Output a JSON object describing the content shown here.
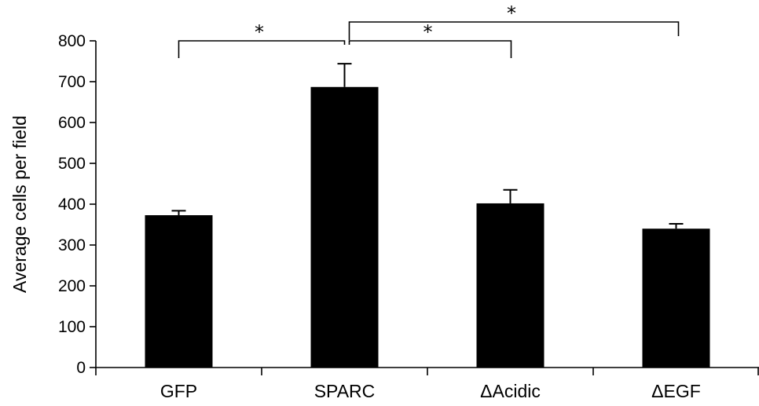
{
  "chart_data": {
    "type": "bar",
    "title": "",
    "xlabel": "",
    "ylabel": "Average cells per field",
    "categories": [
      "GFP",
      "SPARC",
      "ΔAcidic",
      "ΔEGF"
    ],
    "values": [
      373,
      687,
      402,
      340
    ],
    "error": [
      11,
      57,
      33,
      12
    ],
    "ylim": [
      0,
      800
    ],
    "yticks": [
      0,
      100,
      200,
      300,
      400,
      500,
      600,
      700,
      800
    ],
    "grid": false,
    "bar_color": "#000000",
    "significance": [
      {
        "from": 0,
        "to": 1,
        "label": "*"
      },
      {
        "from": 1,
        "to": 2,
        "label": "*"
      },
      {
        "from": 1,
        "to": 3,
        "label": "*"
      }
    ]
  }
}
